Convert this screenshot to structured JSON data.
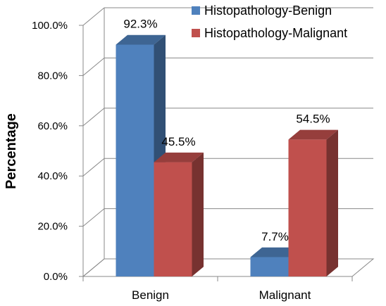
{
  "chart_data": {
    "type": "bar",
    "categories": [
      "Benign",
      "Malignant"
    ],
    "series": [
      {
        "name": "Histopathology-Benign",
        "color": "#4f81bd",
        "values": [
          92.3,
          7.7
        ],
        "labels": [
          "92.3%",
          "7.7%"
        ]
      },
      {
        "name": "Histopathology-Malignant",
        "color": "#c0504d",
        "values": [
          45.5,
          54.5
        ],
        "labels": [
          "45.5%",
          "54.5%"
        ]
      }
    ],
    "ylabel": "Percentage",
    "xlabel": "",
    "ylim": [
      0,
      100
    ],
    "yticks": [
      "0.0%",
      "20.0%",
      "40.0%",
      "60.0%",
      "80.0%",
      "100.0%"
    ],
    "grid": true,
    "legend": "top-right",
    "style": "3d-clustered-column"
  }
}
